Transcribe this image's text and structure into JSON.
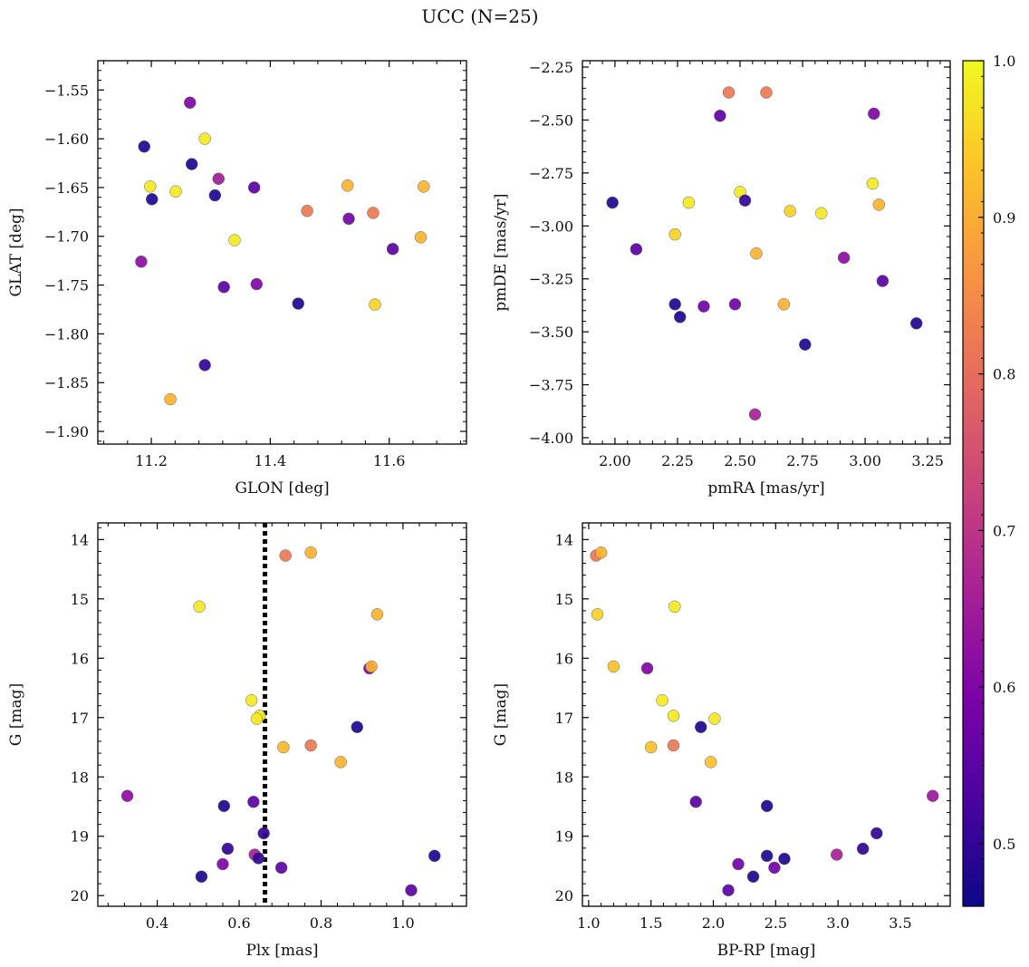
{
  "figure": {
    "title": "UCC (N=25)"
  },
  "colorbar": {
    "min": 0.46,
    "max": 1.0,
    "ticks": [
      0.5,
      0.6,
      0.7,
      0.8,
      0.9,
      1.0
    ]
  },
  "chart_data": [
    {
      "type": "scatter",
      "xlabel": "GLON [deg]",
      "ylabel": "GLAT [deg]",
      "xlim": [
        11.11,
        11.73
      ],
      "ylim": [
        -1.913,
        -1.52
      ],
      "y_inverted": false,
      "xticks": [
        11.2,
        11.4,
        11.6
      ],
      "yticks": [
        -1.9,
        -1.85,
        -1.8,
        -1.75,
        -1.7,
        -1.65,
        -1.6,
        -1.55
      ],
      "points": [
        {
          "x": 11.265,
          "y": -1.563,
          "c": 0.6
        },
        {
          "x": 11.188,
          "y": -1.608,
          "c": 0.48
        },
        {
          "x": 11.29,
          "y": -1.6,
          "c": 0.98
        },
        {
          "x": 11.268,
          "y": -1.626,
          "c": 0.48
        },
        {
          "x": 11.313,
          "y": -1.641,
          "c": 0.65
        },
        {
          "x": 11.198,
          "y": -1.649,
          "c": 0.98
        },
        {
          "x": 11.241,
          "y": -1.654,
          "c": 0.98
        },
        {
          "x": 11.201,
          "y": -1.662,
          "c": 0.48
        },
        {
          "x": 11.307,
          "y": -1.658,
          "c": 0.48
        },
        {
          "x": 11.373,
          "y": -1.65,
          "c": 0.55
        },
        {
          "x": 11.53,
          "y": -1.648,
          "c": 0.91
        },
        {
          "x": 11.658,
          "y": -1.649,
          "c": 0.91
        },
        {
          "x": 11.462,
          "y": -1.674,
          "c": 0.82
        },
        {
          "x": 11.532,
          "y": -1.682,
          "c": 0.58
        },
        {
          "x": 11.573,
          "y": -1.676,
          "c": 0.82
        },
        {
          "x": 11.34,
          "y": -1.704,
          "c": 0.98
        },
        {
          "x": 11.606,
          "y": -1.713,
          "c": 0.55
        },
        {
          "x": 11.653,
          "y": -1.701,
          "c": 0.91
        },
        {
          "x": 11.183,
          "y": -1.726,
          "c": 0.62
        },
        {
          "x": 11.322,
          "y": -1.752,
          "c": 0.55
        },
        {
          "x": 11.377,
          "y": -1.749,
          "c": 0.6
        },
        {
          "x": 11.447,
          "y": -1.769,
          "c": 0.48
        },
        {
          "x": 11.576,
          "y": -1.77,
          "c": 0.95
        },
        {
          "x": 11.29,
          "y": -1.832,
          "c": 0.5
        },
        {
          "x": 11.232,
          "y": -1.867,
          "c": 0.91
        }
      ]
    },
    {
      "type": "scatter",
      "xlabel": "pmRA [mas/yr]",
      "ylabel": "pmDE [mas/yr]",
      "xlim": [
        1.87,
        3.34
      ],
      "ylim": [
        -4.03,
        -2.22
      ],
      "y_inverted": false,
      "xticks": [
        2.0,
        2.25,
        2.5,
        2.75,
        3.0,
        3.25
      ],
      "yticks": [
        -4.0,
        -3.75,
        -3.5,
        -3.25,
        -3.0,
        -2.75,
        -2.5,
        -2.25
      ],
      "points": [
        {
          "x": 2.455,
          "y": -2.37,
          "c": 0.82
        },
        {
          "x": 2.605,
          "y": -2.37,
          "c": 0.82
        },
        {
          "x": 2.42,
          "y": -2.48,
          "c": 0.55
        },
        {
          "x": 3.035,
          "y": -2.47,
          "c": 0.6
        },
        {
          "x": 2.5,
          "y": -2.84,
          "c": 0.98
        },
        {
          "x": 3.03,
          "y": -2.8,
          "c": 0.98
        },
        {
          "x": 1.99,
          "y": -2.89,
          "c": 0.48
        },
        {
          "x": 2.295,
          "y": -2.89,
          "c": 0.98
        },
        {
          "x": 2.52,
          "y": -2.88,
          "c": 0.5
        },
        {
          "x": 3.055,
          "y": -2.9,
          "c": 0.91
        },
        {
          "x": 2.7,
          "y": -2.93,
          "c": 0.95
        },
        {
          "x": 2.825,
          "y": -2.94,
          "c": 0.98
        },
        {
          "x": 2.24,
          "y": -3.04,
          "c": 0.95
        },
        {
          "x": 2.085,
          "y": -3.11,
          "c": 0.55
        },
        {
          "x": 2.565,
          "y": -3.13,
          "c": 0.91
        },
        {
          "x": 2.915,
          "y": -3.15,
          "c": 0.62
        },
        {
          "x": 3.07,
          "y": -3.26,
          "c": 0.55
        },
        {
          "x": 2.24,
          "y": -3.37,
          "c": 0.48
        },
        {
          "x": 2.355,
          "y": -3.38,
          "c": 0.58
        },
        {
          "x": 2.48,
          "y": -3.37,
          "c": 0.58
        },
        {
          "x": 2.675,
          "y": -3.37,
          "c": 0.91
        },
        {
          "x": 2.26,
          "y": -3.43,
          "c": 0.48
        },
        {
          "x": 3.205,
          "y": -3.46,
          "c": 0.48
        },
        {
          "x": 2.76,
          "y": -3.56,
          "c": 0.48
        },
        {
          "x": 2.56,
          "y": -3.89,
          "c": 0.66
        }
      ]
    },
    {
      "type": "scatter",
      "xlabel": "Plx [mas]",
      "ylabel": "G [mag]",
      "xlim": [
        0.255,
        1.155
      ],
      "ylim": [
        20.18,
        13.72
      ],
      "y_inverted": true,
      "xticks": [
        0.4,
        0.6,
        0.8,
        1.0
      ],
      "yticks": [
        14,
        15,
        16,
        17,
        18,
        19,
        20
      ],
      "vline": {
        "x": 0.663,
        "style": "dotted",
        "color": "#000000"
      },
      "points": [
        {
          "x": 0.775,
          "y": 14.22,
          "c": 0.91
        },
        {
          "x": 0.713,
          "y": 14.27,
          "c": 0.82
        },
        {
          "x": 0.503,
          "y": 15.13,
          "c": 0.98
        },
        {
          "x": 0.937,
          "y": 15.26,
          "c": 0.91
        },
        {
          "x": 0.918,
          "y": 16.17,
          "c": 0.6
        },
        {
          "x": 0.923,
          "y": 16.14,
          "c": 0.91
        },
        {
          "x": 0.63,
          "y": 16.71,
          "c": 0.98
        },
        {
          "x": 0.65,
          "y": 16.97,
          "c": 0.98
        },
        {
          "x": 0.643,
          "y": 17.02,
          "c": 0.98
        },
        {
          "x": 0.888,
          "y": 17.16,
          "c": 0.48
        },
        {
          "x": 0.708,
          "y": 17.5,
          "c": 0.92
        },
        {
          "x": 0.775,
          "y": 17.47,
          "c": 0.82
        },
        {
          "x": 0.848,
          "y": 17.75,
          "c": 0.91
        },
        {
          "x": 0.327,
          "y": 18.32,
          "c": 0.62
        },
        {
          "x": 0.563,
          "y": 18.49,
          "c": 0.48
        },
        {
          "x": 0.635,
          "y": 18.42,
          "c": 0.55
        },
        {
          "x": 0.66,
          "y": 18.95,
          "c": 0.5
        },
        {
          "x": 0.572,
          "y": 19.21,
          "c": 0.5
        },
        {
          "x": 0.638,
          "y": 19.31,
          "c": 0.66
        },
        {
          "x": 0.647,
          "y": 19.37,
          "c": 0.5
        },
        {
          "x": 1.077,
          "y": 19.33,
          "c": 0.48
        },
        {
          "x": 0.56,
          "y": 19.47,
          "c": 0.6
        },
        {
          "x": 0.703,
          "y": 19.53,
          "c": 0.55
        },
        {
          "x": 0.508,
          "y": 19.68,
          "c": 0.48
        },
        {
          "x": 1.02,
          "y": 19.91,
          "c": 0.55
        }
      ]
    },
    {
      "type": "scatter",
      "xlabel": "BP-RP [mag]",
      "ylabel": "G [mag]",
      "xlim": [
        0.95,
        3.9
      ],
      "ylim": [
        20.18,
        13.72
      ],
      "y_inverted": true,
      "xticks": [
        1.0,
        1.5,
        2.0,
        2.5,
        3.0,
        3.5
      ],
      "yticks": [
        14,
        15,
        16,
        17,
        18,
        19,
        20
      ],
      "points": [
        {
          "x": 1.06,
          "y": 14.27,
          "c": 0.82
        },
        {
          "x": 1.1,
          "y": 14.22,
          "c": 0.91
        },
        {
          "x": 1.07,
          "y": 15.26,
          "c": 0.95
        },
        {
          "x": 1.69,
          "y": 15.13,
          "c": 0.98
        },
        {
          "x": 1.2,
          "y": 16.14,
          "c": 0.93
        },
        {
          "x": 1.47,
          "y": 16.17,
          "c": 0.6
        },
        {
          "x": 1.59,
          "y": 16.71,
          "c": 0.98
        },
        {
          "x": 1.68,
          "y": 16.97,
          "c": 0.98
        },
        {
          "x": 2.01,
          "y": 17.02,
          "c": 0.98
        },
        {
          "x": 1.9,
          "y": 17.16,
          "c": 0.48
        },
        {
          "x": 1.5,
          "y": 17.5,
          "c": 0.93
        },
        {
          "x": 1.68,
          "y": 17.47,
          "c": 0.82
        },
        {
          "x": 1.98,
          "y": 17.75,
          "c": 0.93
        },
        {
          "x": 1.86,
          "y": 18.42,
          "c": 0.55
        },
        {
          "x": 2.43,
          "y": 18.49,
          "c": 0.48
        },
        {
          "x": 3.76,
          "y": 18.32,
          "c": 0.64
        },
        {
          "x": 3.31,
          "y": 18.95,
          "c": 0.5
        },
        {
          "x": 3.2,
          "y": 19.21,
          "c": 0.5
        },
        {
          "x": 2.99,
          "y": 19.31,
          "c": 0.66
        },
        {
          "x": 2.43,
          "y": 19.33,
          "c": 0.48
        },
        {
          "x": 2.57,
          "y": 19.38,
          "c": 0.48
        },
        {
          "x": 2.2,
          "y": 19.47,
          "c": 0.58
        },
        {
          "x": 2.49,
          "y": 19.53,
          "c": 0.58
        },
        {
          "x": 2.32,
          "y": 19.68,
          "c": 0.48
        },
        {
          "x": 2.12,
          "y": 19.91,
          "c": 0.55
        }
      ]
    }
  ]
}
